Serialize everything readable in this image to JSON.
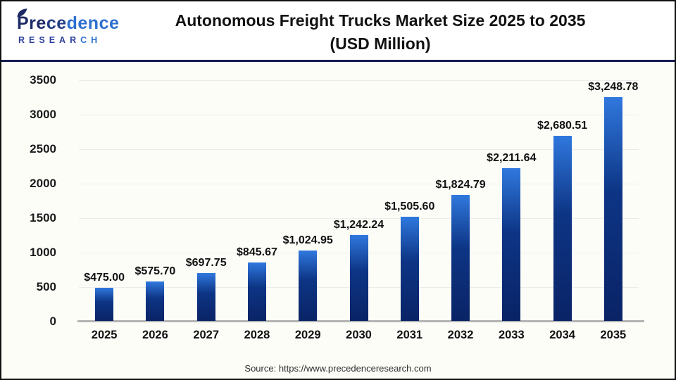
{
  "header": {
    "logo": {
      "p1": "Pre",
      "p2": "ce",
      "p3": "dence",
      "r1": "RESEAR",
      "r2": "CH"
    },
    "title_line1": "Autonomous Freight Trucks Market Size 2025 to 2035",
    "title_line2": "(USD Million)"
  },
  "chart_data": {
    "type": "bar",
    "title": "Autonomous Freight Trucks Market Size 2025 to 2035 (USD Million)",
    "categories": [
      "2025",
      "2026",
      "2027",
      "2028",
      "2029",
      "2030",
      "2031",
      "2032",
      "2033",
      "2034",
      "2035"
    ],
    "values": [
      475.0,
      575.7,
      697.75,
      845.67,
      1024.95,
      1242.24,
      1505.6,
      1824.79,
      2211.64,
      2680.51,
      3248.78
    ],
    "value_labels": [
      "$475.00",
      "$575.70",
      "$697.75",
      "$845.67",
      "$1,024.95",
      "$1,242.24",
      "$1,505.60",
      "$1,824.79",
      "$2,211.64",
      "$2,680.51",
      "$3,248.78"
    ],
    "xlabel": "",
    "ylabel": "",
    "ylim": [
      0,
      3500
    ],
    "yticks": [
      0,
      500,
      1000,
      1500,
      2000,
      2500,
      3000,
      3500
    ],
    "grid": "horizontal",
    "legend": "none",
    "bar_gradient_top": "#3078de",
    "bar_gradient_bottom": "#0a2366",
    "gridline_color": "#ececec",
    "baseline_color": "#b3b3b3"
  },
  "footer": {
    "source": "Source: https://www.precedenceresearch.com"
  }
}
